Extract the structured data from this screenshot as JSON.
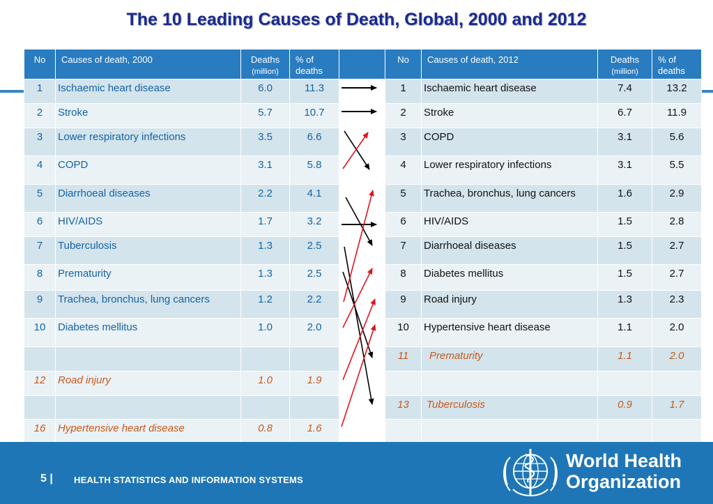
{
  "title": "The 10 Leading Causes of Death, Global, 2000 and 2012",
  "headers": {
    "no_2000": "No",
    "cause_2000": "Causes of death,  2000",
    "deaths_2000": "Deaths",
    "deaths_unit_2000": "(million)",
    "pct_2000": "% of deaths",
    "no_2012": "No",
    "cause_2012": "Causes of death, 2012",
    "deaths_2012": "Deaths",
    "deaths_unit_2012": "(million)",
    "pct_2012": "% of deaths"
  },
  "rows": [
    {
      "l_no": "1",
      "l_cause": "Ischaemic heart disease",
      "l_deaths": "6.0",
      "l_pct": "11.3",
      "r_no": "1",
      "r_cause": "Ischaemic heart disease",
      "r_deaths": "7.4",
      "r_pct": "13.2"
    },
    {
      "l_no": "2",
      "l_cause": "Stroke",
      "l_deaths": "5.7",
      "l_pct": "10.7",
      "r_no": "2",
      "r_cause": "Stroke",
      "r_deaths": "6.7",
      "r_pct": "11.9"
    },
    {
      "l_no": "3",
      "l_cause": "Lower respiratory infections",
      "l_deaths": "3.5",
      "l_pct": "6.6",
      "r_no": "3",
      "r_cause": "COPD",
      "r_deaths": "3.1",
      "r_pct": "5.6"
    },
    {
      "l_no": "4",
      "l_cause": "COPD",
      "l_deaths": "3.1",
      "l_pct": "5.8",
      "r_no": "4",
      "r_cause": "Lower respiratory infections",
      "r_deaths": "3.1",
      "r_pct": "5.5"
    },
    {
      "l_no": "5",
      "l_cause": "Diarrhoeal diseases",
      "l_deaths": "2.2",
      "l_pct": "4.1",
      "r_no": "5",
      "r_cause": "Trachea, bronchus, lung cancers",
      "r_deaths": "1.6",
      "r_pct": "2.9"
    },
    {
      "l_no": "6",
      "l_cause": "HIV/AIDS",
      "l_deaths": "1.7",
      "l_pct": "3.2",
      "r_no": "6",
      "r_cause": "HIV/AIDS",
      "r_deaths": "1.5",
      "r_pct": "2.8"
    },
    {
      "l_no": "7",
      "l_cause": "Tuberculosis",
      "l_deaths": "1.3",
      "l_pct": "2.5",
      "r_no": "7",
      "r_cause": "Diarrhoeal diseases",
      "r_deaths": "1.5",
      "r_pct": "2.7"
    },
    {
      "l_no": "8",
      "l_cause": "Prematurity",
      "l_deaths": "1.3",
      "l_pct": "2.5",
      "r_no": "8",
      "r_cause": "Diabetes mellitus",
      "r_deaths": "1.5",
      "r_pct": "2.7"
    },
    {
      "l_no": "9",
      "l_cause": "Trachea, bronchus, lung cancers",
      "l_deaths": "1.2",
      "l_pct": "2.2",
      "r_no": "9",
      "r_cause": "Road injury",
      "r_deaths": "1.3",
      "r_pct": "2.3"
    },
    {
      "l_no": "10",
      "l_cause": "Diabetes mellitus",
      "l_deaths": "1.0",
      "l_pct": "2.0",
      "r_no": "10",
      "r_cause": "Hypertensive heart disease",
      "r_deaths": "1.1",
      "r_pct": "2.0"
    },
    {
      "l_no": "",
      "l_cause": "",
      "l_deaths": "",
      "l_pct": "",
      "r_no": "11",
      "r_cause": "Prematurity",
      "r_deaths": "1.1",
      "r_pct": "2.0"
    },
    {
      "l_no": "12",
      "l_cause": "Road injury",
      "l_deaths": "1.0",
      "l_pct": "1.9",
      "r_no": "",
      "r_cause": "",
      "r_deaths": "",
      "r_pct": ""
    },
    {
      "l_no": "",
      "l_cause": "",
      "l_deaths": "",
      "l_pct": "",
      "r_no": "13",
      "r_cause": "Tuberculosis",
      "r_deaths": "0.9",
      "r_pct": "1.7"
    },
    {
      "l_no": "16",
      "l_cause": "Hypertensive heart disease",
      "l_deaths": "0.8",
      "l_pct": "1.6",
      "r_no": "",
      "r_cause": "",
      "r_deaths": "",
      "r_pct": ""
    }
  ],
  "colors": {
    "title": "#1b2a8c",
    "header_bg": "#2a7cc0",
    "row_odd": "#d4e4ec",
    "row_even": "#eaf2f5",
    "left_text": "#1463a8",
    "outside_top10_text": "#c8591c",
    "arrow_same_or_down": "#000000",
    "arrow_up": "#e0141e",
    "footer_bg": "#1f76b6"
  },
  "footer": {
    "page_number": "5",
    "separator": "|",
    "org_unit": "HEALTH STATISTICS AND INFORMATION SYSTEMS",
    "logo_line1": "World Health",
    "logo_line2": "Organization",
    "logo_icon": "who-emblem-icon"
  }
}
